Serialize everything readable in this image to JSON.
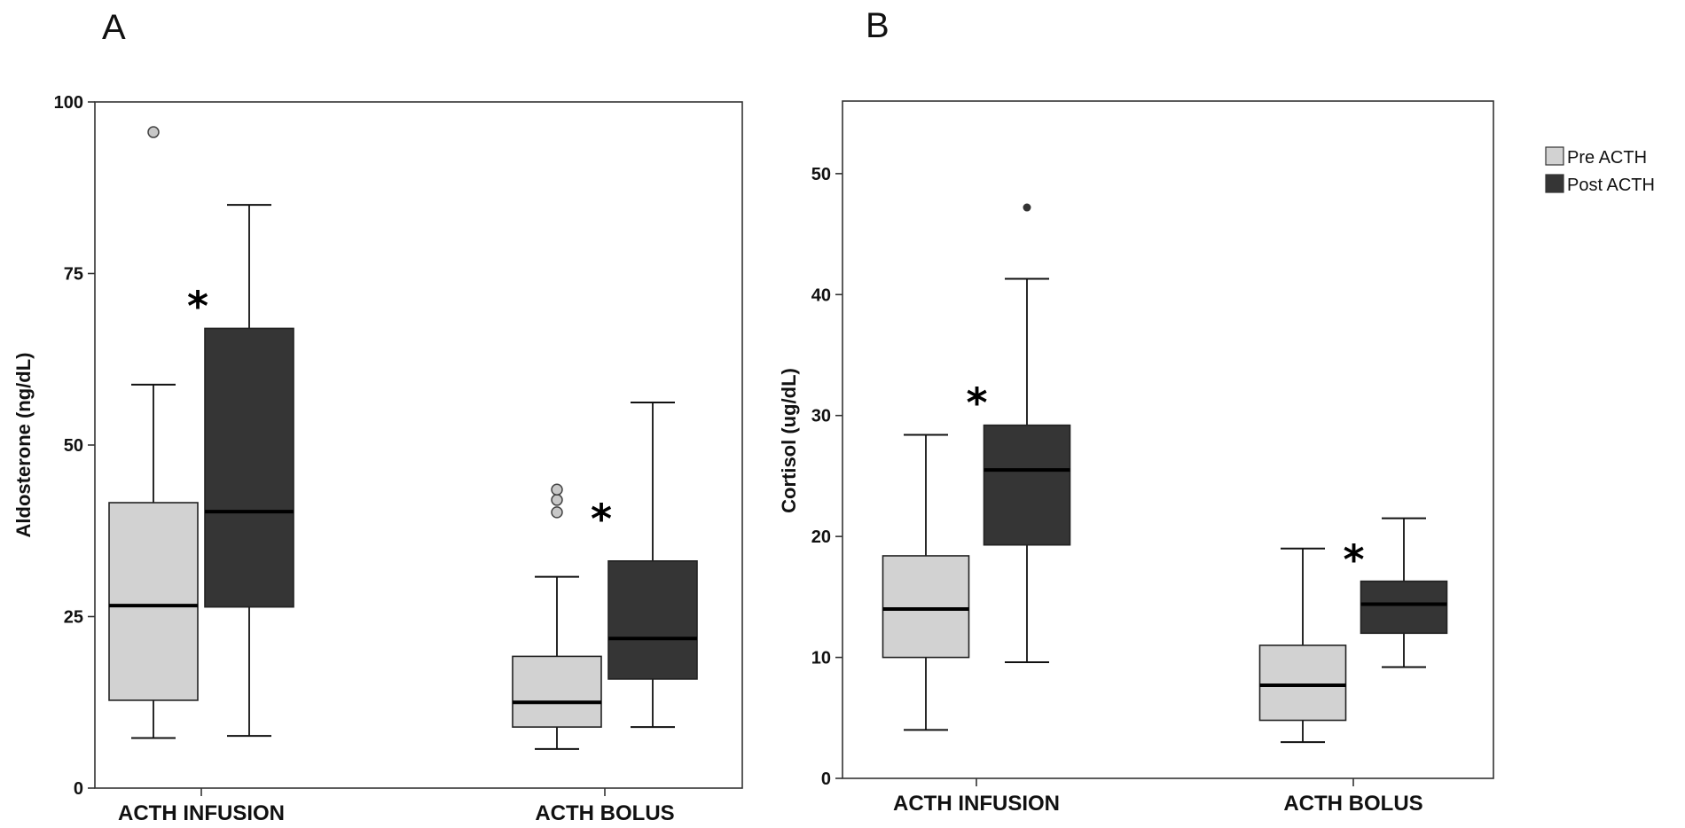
{
  "legend": {
    "placement": "top-right",
    "items": [
      {
        "label": "Pre ACTH",
        "color": "#d2d2d2"
      },
      {
        "label": "Post ACTH",
        "color": "#353535"
      }
    ]
  },
  "chart_data": [
    {
      "panel": "A",
      "type": "box",
      "ylabel": "Aldosterone (ng/dL)",
      "ylim": [
        0,
        100
      ],
      "yticks": [
        0,
        25,
        50,
        75,
        100
      ],
      "categories": [
        "ACTH INFUSION",
        "ACTH BOLUS"
      ],
      "series": [
        {
          "name": "Pre ACTH",
          "color": "#d2d2d2",
          "boxes": [
            {
              "min": 7.3,
              "q1": 12.8,
              "median": 26.6,
              "q3": 41.6,
              "max": 58.8,
              "outliers": [
                95.6
              ]
            },
            {
              "min": 5.7,
              "q1": 8.9,
              "median": 12.5,
              "q3": 19.2,
              "max": 30.8,
              "outliers": [
                40.2,
                42.0,
                43.5
              ]
            }
          ]
        },
        {
          "name": "Post ACTH",
          "color": "#353535",
          "boxes": [
            {
              "min": 7.6,
              "q1": 26.4,
              "median": 40.3,
              "q3": 67.0,
              "max": 85.0,
              "outliers": []
            },
            {
              "min": 8.9,
              "q1": 15.9,
              "median": 21.8,
              "q3": 33.1,
              "max": 56.2,
              "outliers": []
            }
          ]
        }
      ],
      "annotations": [
        {
          "text": "*",
          "category": 0,
          "series": 1,
          "y": 71
        },
        {
          "text": "*",
          "category": 1,
          "series": 1,
          "y": 40
        }
      ]
    },
    {
      "panel": "B",
      "type": "box",
      "ylabel": "Cortisol (ug/dL)",
      "ylim": [
        0,
        56
      ],
      "yticks": [
        0,
        10,
        20,
        30,
        40,
        50
      ],
      "categories": [
        "ACTH INFUSION",
        "ACTH BOLUS"
      ],
      "series": [
        {
          "name": "Pre ACTH",
          "color": "#d2d2d2",
          "boxes": [
            {
              "min": 4.0,
              "q1": 10.0,
              "median": 14.0,
              "q3": 18.4,
              "max": 28.4,
              "outliers": []
            },
            {
              "min": 3.0,
              "q1": 4.8,
              "median": 7.7,
              "q3": 11.0,
              "max": 19.0,
              "outliers": []
            }
          ]
        },
        {
          "name": "Post ACTH",
          "color": "#353535",
          "boxes": [
            {
              "min": 9.6,
              "q1": 19.3,
              "median": 25.5,
              "q3": 29.2,
              "max": 41.3,
              "outliers": [
                47.2
              ]
            },
            {
              "min": 9.2,
              "q1": 12.0,
              "median": 14.4,
              "q3": 16.3,
              "max": 21.5,
              "outliers": []
            }
          ]
        }
      ],
      "annotations": [
        {
          "text": "*",
          "category": 0,
          "series": 1,
          "y": 31.5
        },
        {
          "text": "*",
          "category": 1,
          "series": 1,
          "y": 18.5
        }
      ]
    }
  ]
}
